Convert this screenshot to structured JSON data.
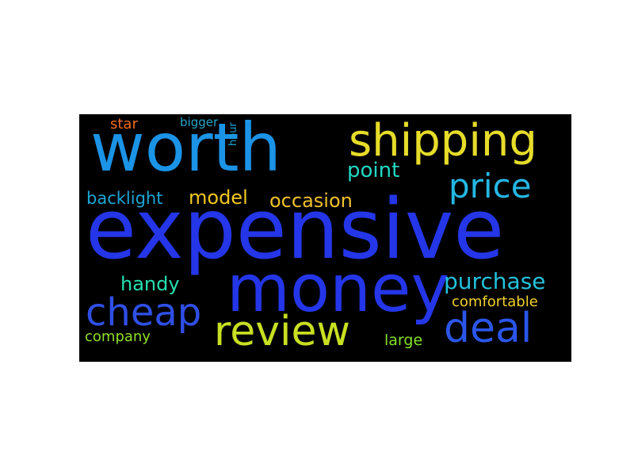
{
  "word_cloud": {
    "background": "#000000",
    "words": [
      {
        "key": "expensive",
        "text": "expensive",
        "color": "#2436e8"
      },
      {
        "key": "worth",
        "text": "worth",
        "color": "#1b93e6"
      },
      {
        "key": "money",
        "text": "money",
        "color": "#2436e8"
      },
      {
        "key": "shipping",
        "text": "shipping",
        "color": "#e6dc2a"
      },
      {
        "key": "review",
        "text": "review",
        "color": "#c8e022"
      },
      {
        "key": "cheap",
        "text": "cheap",
        "color": "#2f4fe6"
      },
      {
        "key": "deal",
        "text": "deal",
        "color": "#2a56ea"
      },
      {
        "key": "price",
        "text": "price",
        "color": "#24b7e4"
      },
      {
        "key": "purchase",
        "text": "purchase",
        "color": "#23c2dc"
      },
      {
        "key": "point",
        "text": "point",
        "color": "#22d8c4"
      },
      {
        "key": "occasion",
        "text": "occasion",
        "color": "#f0c22a"
      },
      {
        "key": "model",
        "text": "model",
        "color": "#f2c81f"
      },
      {
        "key": "handy",
        "text": "handy",
        "color": "#24e0b0"
      },
      {
        "key": "backlight",
        "text": "backlight",
        "color": "#1ca6d6"
      },
      {
        "key": "comfortable",
        "text": "comfortable",
        "color": "#f2d12a"
      },
      {
        "key": "company",
        "text": "company",
        "color": "#8fe024"
      },
      {
        "key": "large",
        "text": "large",
        "color": "#82e226"
      },
      {
        "key": "star",
        "text": "star",
        "color": "#f26a1d"
      },
      {
        "key": "bigger",
        "text": "bigger",
        "color": "#23a6c9"
      },
      {
        "key": "hour",
        "text": "hour",
        "color": "#1fa3d2"
      }
    ]
  }
}
